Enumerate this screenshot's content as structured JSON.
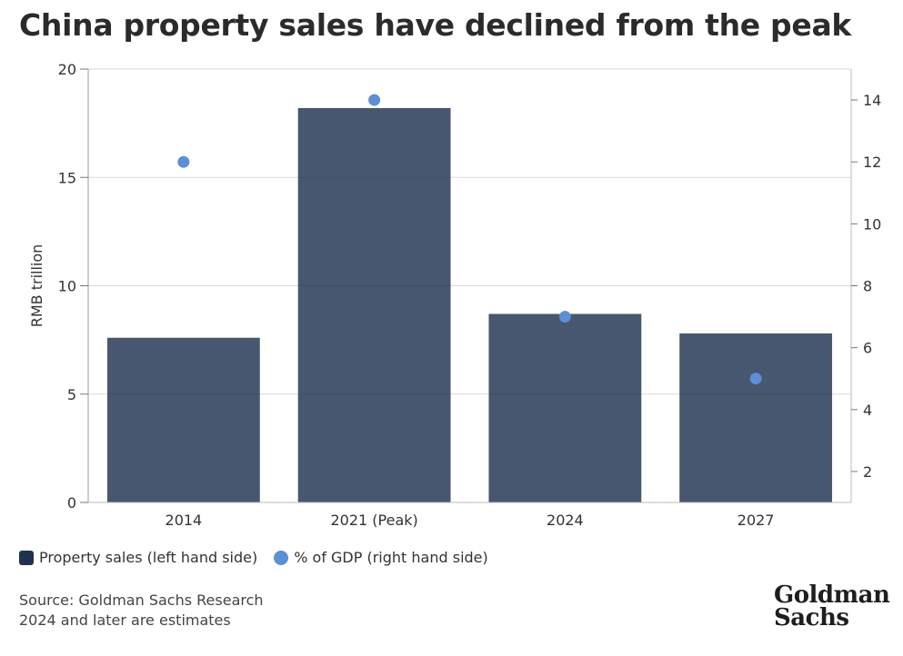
{
  "title": "China property sales have declined from the peak",
  "chart_data": {
    "type": "bar",
    "categories": [
      "2014",
      "2021 (Peak)",
      "2024",
      "2027"
    ],
    "series": [
      {
        "name": "Property sales (left hand side)",
        "type": "bar",
        "axis": "left",
        "values": [
          7.6,
          18.2,
          8.7,
          7.8
        ],
        "color": "#1e3250"
      },
      {
        "name": "% of GDP (right hand side)",
        "type": "scatter",
        "axis": "right",
        "values": [
          12,
          14,
          7,
          5
        ],
        "color": "#5b8fd6"
      }
    ],
    "ylabel": "RMB trillion",
    "ylim": [
      0,
      20
    ],
    "yticks": [
      "0",
      "5",
      "10",
      "15",
      "20"
    ],
    "y2lim": [
      1,
      15
    ],
    "y2ticks": [
      "2",
      "4",
      "6",
      "8",
      "10",
      "12",
      "14"
    ],
    "grid": true,
    "legend_position": "bottom-left"
  },
  "legend": [
    {
      "label": "Property sales (left hand side)",
      "color": "#1e3250"
    },
    {
      "label": "% of GDP (right hand side)",
      "color": "#5b8fd6"
    }
  ],
  "footer": {
    "source": "Source: Goldman Sachs Research",
    "note": "2024 and later are estimates"
  },
  "logo": {
    "line1": "Goldman",
    "line2": "Sachs"
  }
}
